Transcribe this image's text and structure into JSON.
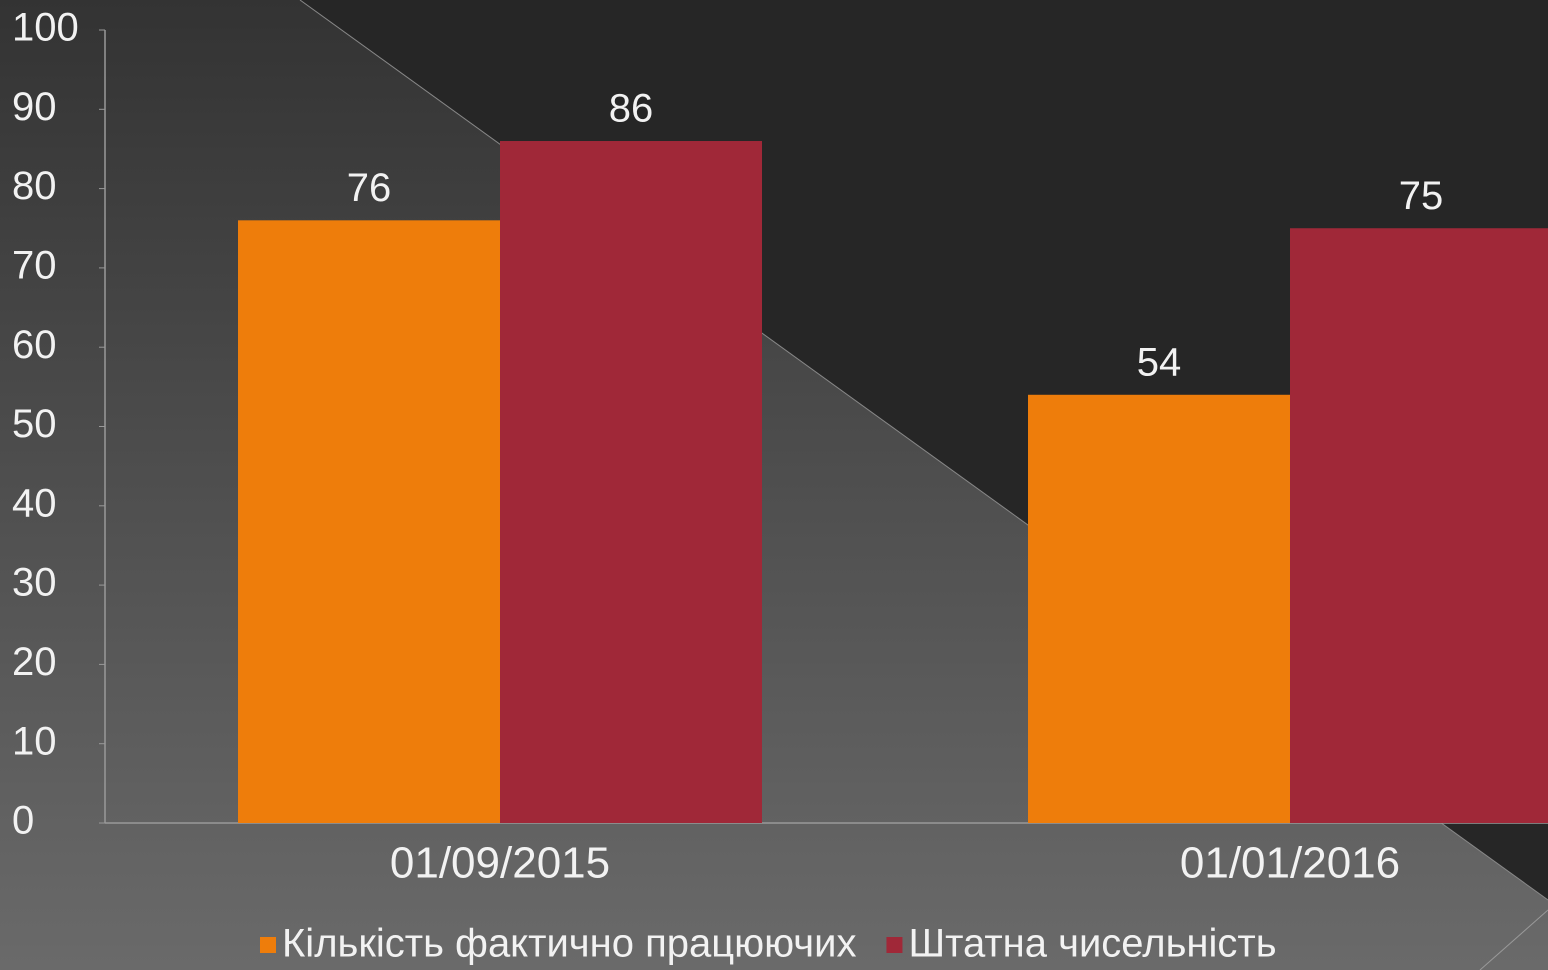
{
  "chart_data": {
    "type": "bar",
    "categories": [
      "01/09/2015",
      "01/01/2016"
    ],
    "series": [
      {
        "name": "Кількість фактично працюючих",
        "color": "#ee7d0b",
        "values": [
          76,
          54
        ]
      },
      {
        "name": "Штатна чисельність",
        "color": "#a02838",
        "values": [
          86,
          75
        ]
      }
    ],
    "ylim": [
      0,
      100
    ],
    "yticks": [
      0,
      10,
      20,
      30,
      40,
      50,
      60,
      70,
      80,
      90,
      100
    ],
    "legend": "bottom"
  }
}
